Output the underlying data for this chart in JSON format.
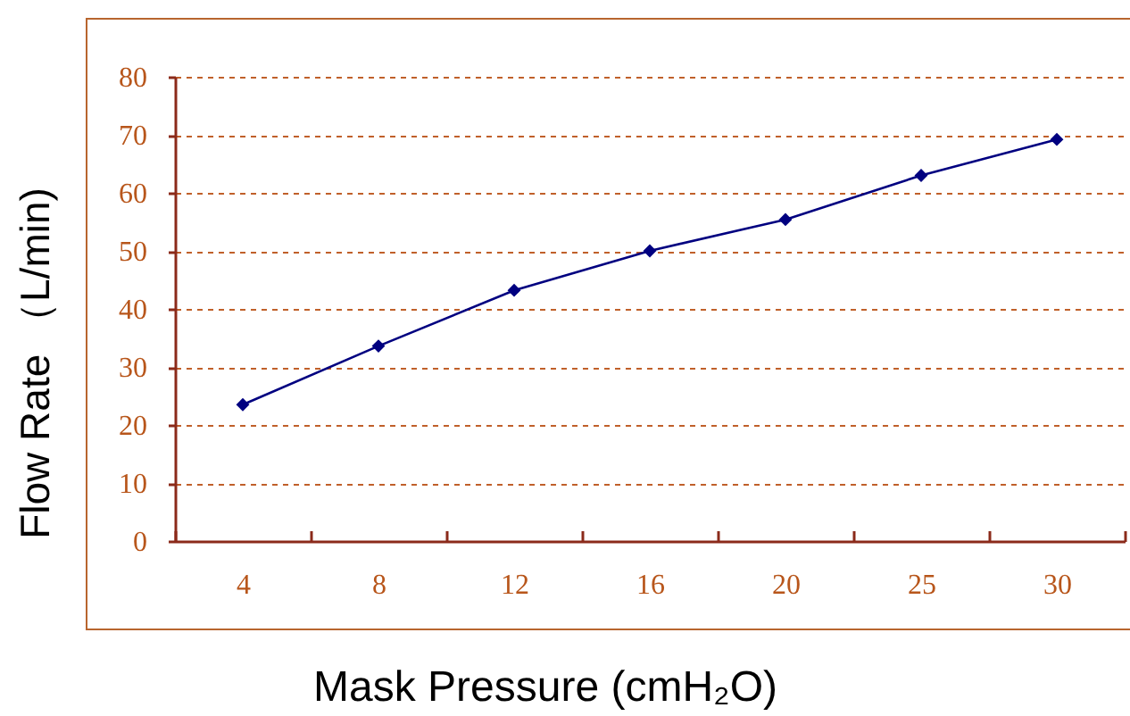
{
  "chart_data": {
    "type": "line",
    "xlabel": "Mask Pressure (cmH₂O)",
    "ylabel": "Flow Rate （L/min)",
    "categories": [
      "4",
      "8",
      "12",
      "16",
      "20",
      "25",
      "30"
    ],
    "series": [
      {
        "color": "#000080",
        "values": [
          23.5,
          33.6,
          43.2,
          50,
          55.4,
          63,
          69.2
        ]
      }
    ],
    "ylim": [
      0,
      80
    ],
    "yticks": [
      0,
      10,
      20,
      30,
      40,
      50,
      60,
      70,
      80
    ],
    "grid": "y",
    "marker": "diamond",
    "line_style": "solid"
  }
}
